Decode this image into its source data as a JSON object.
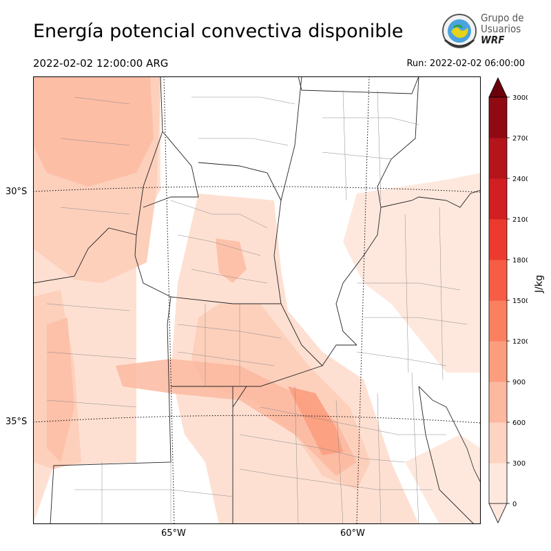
{
  "title": "Energía potencial convectiva disponible",
  "valid_time": "2022-02-02 12:00:00 ARG",
  "run_time": "Run: 2022-02-02 06:00:00",
  "logo": {
    "line1": "Grupo de",
    "line2": "Usuarios",
    "line3": "WRF"
  },
  "map": {
    "lat_labels": [
      "30°S",
      "35°S"
    ],
    "lon_labels": [
      "65°W",
      "60°W"
    ]
  },
  "colorbar": {
    "unit": "J/kg",
    "ticks": [
      "0",
      "300",
      "600",
      "900",
      "1200",
      "1500",
      "1800",
      "2100",
      "2400",
      "2700",
      "3000"
    ],
    "colors": [
      "#fee8de",
      "#fdd3c2",
      "#fcb9a0",
      "#fc9d7e",
      "#fb8060",
      "#f65d44",
      "#ec3b2e",
      "#d21f21",
      "#b3151b",
      "#900a12",
      "#6b000d"
    ]
  }
}
